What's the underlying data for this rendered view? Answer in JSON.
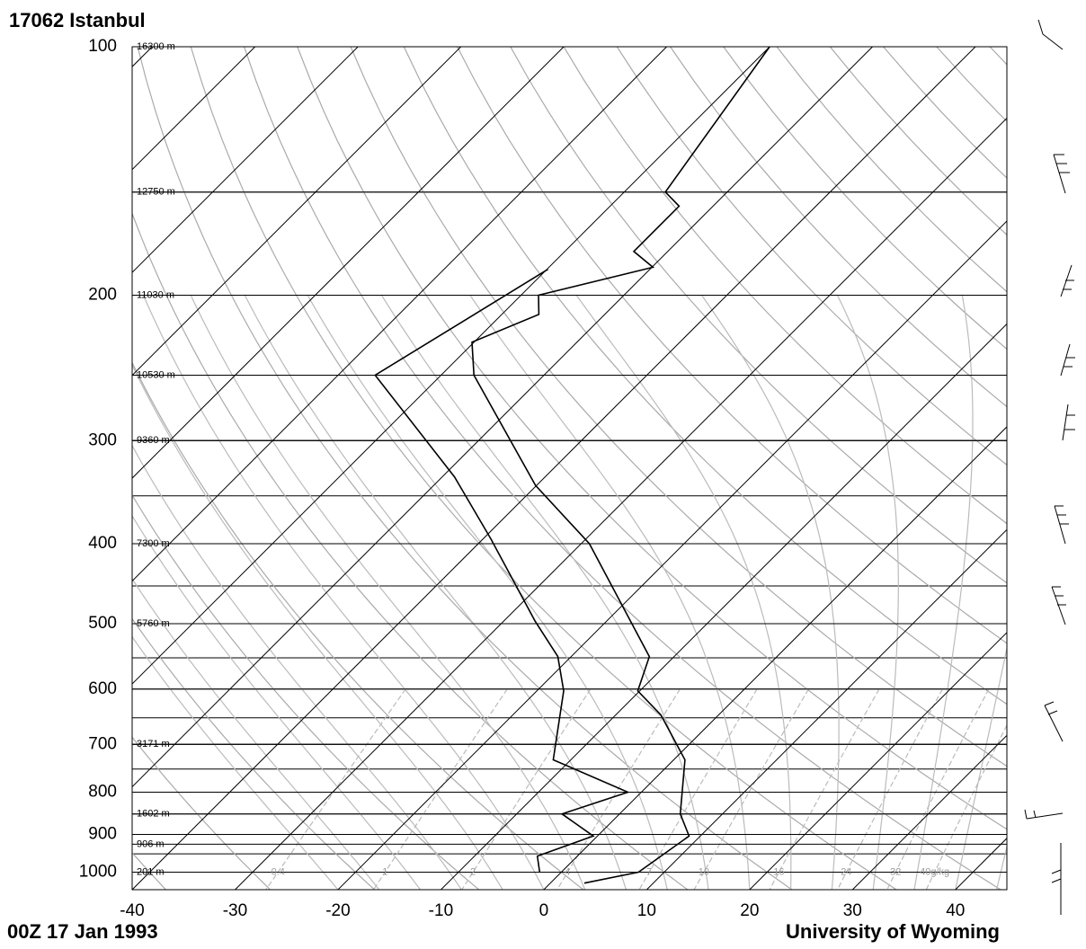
{
  "chart_data": {
    "type": "skewt",
    "title": "17062  Istanbul",
    "footer_left": "00Z 17 Jan 1993",
    "footer_right": "University of Wyoming",
    "xlim": [
      -40,
      45
    ],
    "ylim": [
      1050,
      100
    ],
    "log_y": true,
    "xticks": [
      -40,
      -30,
      -20,
      -10,
      0,
      10,
      20,
      30,
      40
    ],
    "yticks": [
      100,
      200,
      300,
      400,
      500,
      600,
      700,
      800,
      900,
      1000
    ],
    "heights": [
      {
        "pressure": 100,
        "label": "16300 m"
      },
      {
        "pressure": 150,
        "label": "12750 m"
      },
      {
        "pressure": 200,
        "label": "11030 m"
      },
      {
        "pressure": 250,
        "label": "10530 m"
      },
      {
        "pressure": 300,
        "label": "9360 m"
      },
      {
        "pressure": 400,
        "label": "7300 m"
      },
      {
        "pressure": 500,
        "label": "5760 m"
      },
      {
        "pressure": 700,
        "label": "3171 m"
      },
      {
        "pressure": 850,
        "label": "1602 m"
      },
      {
        "pressure": 925,
        "label": "906 m"
      },
      {
        "pressure": 1000,
        "label": "201 m"
      }
    ],
    "mixing_ratios": [
      {
        "value": 0.4,
        "label": "0.4"
      },
      {
        "value": 1,
        "label": "1"
      },
      {
        "value": 2,
        "label": "2"
      },
      {
        "value": 4,
        "label": "4"
      },
      {
        "value": 7,
        "label": "7"
      },
      {
        "value": 10,
        "label": "10"
      },
      {
        "value": 16,
        "label": "16"
      },
      {
        "value": 24,
        "label": "24"
      },
      {
        "value": 32,
        "label": "32"
      },
      {
        "value": 40,
        "label": "40g/kg"
      }
    ],
    "series": [
      {
        "name": "Temperature",
        "color": "#000000",
        "pressure": [
          1031,
          1000,
          904,
          850,
          731,
          645,
          603,
          548,
          400,
          340,
          250,
          228,
          211,
          200,
          185,
          177,
          156,
          150,
          100
        ],
        "values": [
          3.3,
          7.5,
          8.9,
          5.9,
          1.1,
          -5.6,
          -10.2,
          -12.4,
          -29.2,
          -40.1,
          -56.8,
          -60.2,
          -56.4,
          -58.3,
          -49.9,
          -53.3,
          -53.3,
          -56.0,
          -60.0
        ]
      },
      {
        "name": "Dewpoint",
        "color": "#000000",
        "pressure": [
          1000,
          956,
          904,
          850,
          800,
          731,
          603,
          548,
          496,
          395,
          332,
          250,
          186
        ],
        "values": [
          -2.1,
          -3.9,
          -0.4,
          -5.6,
          -1.3,
          -11.7,
          -17.4,
          -21.3,
          -27.0,
          -39.2,
          -48.8,
          -66.4,
          -59.9
        ]
      }
    ]
  }
}
